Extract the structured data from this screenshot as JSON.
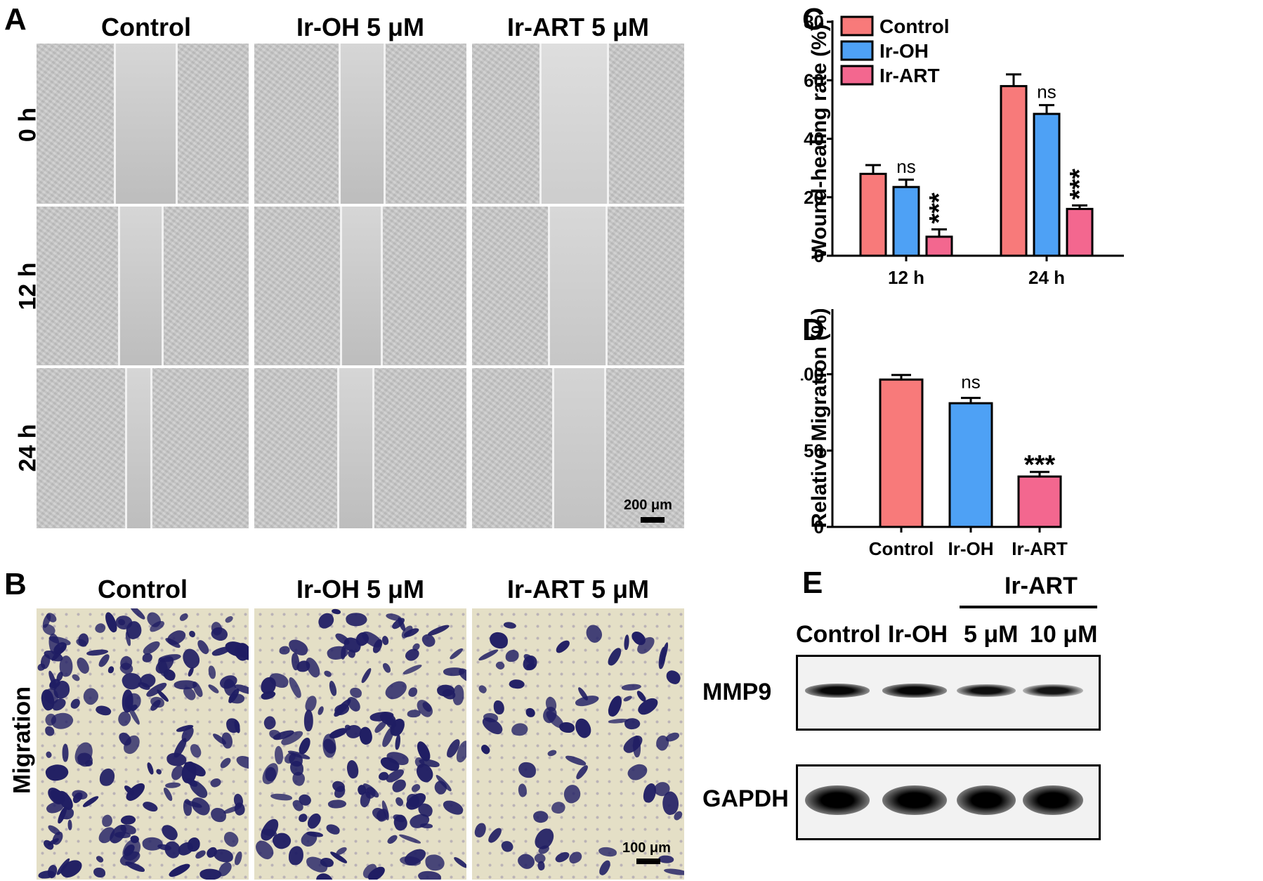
{
  "panels": {
    "A": {
      "label": "A",
      "columns": [
        "Control",
        "Ir-OH 5 μM",
        "Ir-ART 5 μM"
      ],
      "rows": [
        "0 h",
        "12 h",
        "24 h"
      ],
      "scale": "200 μm"
    },
    "B": {
      "label": "B",
      "columns": [
        "Control",
        "Ir-OH 5 μM",
        "Ir-ART 5 μM"
      ],
      "row": "Migration",
      "scale": "100 μm"
    },
    "C": {
      "label": "C"
    },
    "D": {
      "label": "D"
    },
    "E": {
      "label": "E",
      "group_label": "Ir-ART",
      "lanes": [
        "Control",
        "Ir-OH",
        "5 μM",
        "10 μM"
      ],
      "bands": [
        "MMP9",
        "GAPDH"
      ],
      "band_intensity": {
        "MMP9": [
          0.85,
          0.85,
          0.65,
          0.5
        ],
        "GAPDH": [
          1.0,
          1.0,
          1.0,
          1.0
        ]
      }
    }
  },
  "chart_data": [
    {
      "type": "bar",
      "panel": "C",
      "ylabel": "Wound-healing rate (%)",
      "categories": [
        "12 h",
        "24 h"
      ],
      "ylim": [
        0,
        80
      ],
      "yticks": [
        0,
        20,
        40,
        60,
        80
      ],
      "legend_position": "top-left",
      "series": [
        {
          "name": "Control",
          "values": [
            28,
            58
          ],
          "errors": [
            3,
            4
          ],
          "color": "#f87a7a",
          "sig": [
            "",
            ""
          ]
        },
        {
          "name": "Ir-OH",
          "values": [
            23.5,
            48.5
          ],
          "errors": [
            2.5,
            3
          ],
          "color": "#4ea1f5",
          "sig": [
            "ns",
            "ns"
          ]
        },
        {
          "name": "Ir-ART",
          "values": [
            6.5,
            16
          ],
          "errors": [
            2.5,
            1.2
          ],
          "color": "#f3678f",
          "sig": [
            "***",
            "***"
          ]
        }
      ]
    },
    {
      "type": "bar",
      "panel": "D",
      "ylabel": "Relative Migration (%)",
      "categories": [
        "Control",
        "Ir-OH",
        "Ir-ART"
      ],
      "ylim": [
        0,
        150
      ],
      "yticks": [
        0,
        50,
        100,
        150
      ],
      "values": [
        96.5,
        81,
        33
      ],
      "errors": [
        3,
        3.5,
        3
      ],
      "colors": [
        "#f87a7a",
        "#4ea1f5",
        "#f3678f"
      ],
      "sig": [
        "",
        "ns",
        "***"
      ]
    }
  ]
}
